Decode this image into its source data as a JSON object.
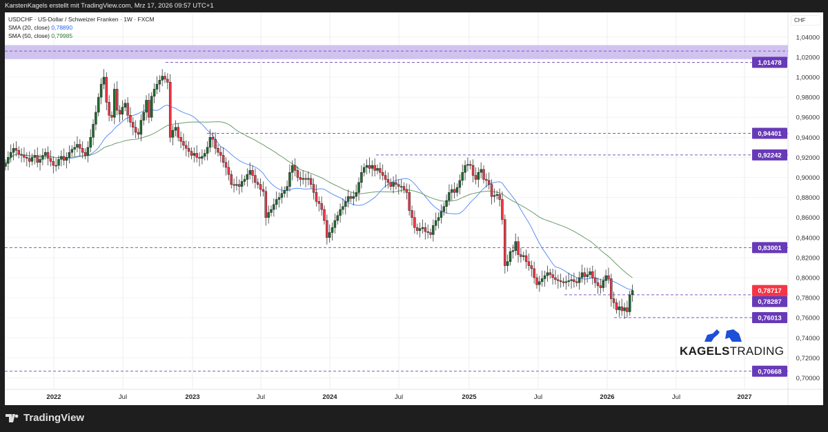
{
  "header": {
    "attribution": "KarstenKagels erstellt mit TradingView.com, Mrz 17, 2026 09:57 UTC+1"
  },
  "legend": {
    "symbol_line": "USDCHF · US-Dollar / Schweizer Franken · 1W · FXCM",
    "sma20_label": "SMA (20, close)",
    "sma20_value": "0,78890",
    "sma50_label": "SMA (50, close)",
    "sma50_value": "0,79985"
  },
  "price_axis": {
    "currency": "CHF",
    "ticks": [
      "1,04000",
      "1,02000",
      "1,00000",
      "0,98000",
      "0,96000",
      "0,94000",
      "0,92000",
      "0,90000",
      "0,88000",
      "0,86000",
      "0,84000",
      "0,82000",
      "0,80000",
      "0,78000",
      "0,76000",
      "0,74000",
      "0,72000",
      "0,70000"
    ]
  },
  "time_axis": {
    "labels": [
      "2022",
      "Jul",
      "2023",
      "Jul",
      "2024",
      "Jul",
      "2025",
      "Jul",
      "2026",
      "Jul",
      "2027"
    ]
  },
  "branding": {
    "tradingview": "TradingView",
    "kagels_bold": "KAGELS",
    "kagels_light": "TRADING"
  },
  "colors": {
    "up": "#1f6b2e",
    "down": "#f23645",
    "sma20": "#5b8ff9",
    "sma50": "#6a9c6a",
    "level": "#7e57c2",
    "badge": "#673ab7",
    "last_price": "#f23645",
    "zone": "#c9b8ec"
  },
  "chart_data": {
    "type": "candlestick",
    "symbol": "USDCHF",
    "timeframe": "1W",
    "ylim": [
      0.7,
      1.04
    ],
    "xlim": [
      "2021-09",
      "2027-03"
    ],
    "grid": true,
    "last_price": 0.78717,
    "last_price_label": "0,78717",
    "closes": [
      0.914,
      0.92,
      0.925,
      0.929,
      0.927,
      0.923,
      0.922,
      0.92,
      0.919,
      0.916,
      0.92,
      0.922,
      0.915,
      0.918,
      0.922,
      0.925,
      0.919,
      0.916,
      0.912,
      0.912,
      0.918,
      0.921,
      0.917,
      0.92,
      0.925,
      0.928,
      0.93,
      0.933,
      0.929,
      0.925,
      0.922,
      0.93,
      0.94,
      0.953,
      0.965,
      0.98,
      0.993,
      1.0,
      0.975,
      0.962,
      0.96,
      0.988,
      0.967,
      0.963,
      0.97,
      0.974,
      0.962,
      0.955,
      0.95,
      0.945,
      0.943,
      0.957,
      0.965,
      0.977,
      0.96,
      0.981,
      0.988,
      0.993,
      0.997,
      1.001,
      0.998,
      0.995,
      0.94,
      0.947,
      0.95,
      0.94,
      0.936,
      0.932,
      0.929,
      0.926,
      0.922,
      0.924,
      0.92,
      0.919,
      0.921,
      0.924,
      0.93,
      0.94,
      0.938,
      0.929,
      0.925,
      0.922,
      0.915,
      0.91,
      0.903,
      0.893,
      0.892,
      0.893,
      0.891,
      0.896,
      0.898,
      0.903,
      0.907,
      0.902,
      0.895,
      0.893,
      0.888,
      0.886,
      0.86,
      0.865,
      0.868,
      0.873,
      0.878,
      0.88,
      0.884,
      0.887,
      0.891,
      0.905,
      0.912,
      0.907,
      0.9,
      0.898,
      0.899,
      0.898,
      0.899,
      0.893,
      0.885,
      0.876,
      0.874,
      0.868,
      0.857,
      0.84,
      0.845,
      0.85,
      0.857,
      0.862,
      0.868,
      0.871,
      0.876,
      0.881,
      0.879,
      0.881,
      0.885,
      0.895,
      0.905,
      0.91,
      0.912,
      0.909,
      0.912,
      0.907,
      0.909,
      0.905,
      0.902,
      0.898,
      0.895,
      0.891,
      0.895,
      0.893,
      0.891,
      0.891,
      0.888,
      0.885,
      0.867,
      0.86,
      0.85,
      0.847,
      0.849,
      0.85,
      0.846,
      0.845,
      0.843,
      0.852,
      0.857,
      0.86,
      0.866,
      0.871,
      0.877,
      0.885,
      0.888,
      0.885,
      0.89,
      0.897,
      0.905,
      0.912,
      0.913,
      0.912,
      0.902,
      0.898,
      0.905,
      0.908,
      0.898,
      0.897,
      0.893,
      0.881,
      0.882,
      0.883,
      0.878,
      0.858,
      0.812,
      0.816,
      0.826,
      0.827,
      0.836,
      0.823,
      0.821,
      0.822,
      0.816,
      0.812,
      0.809,
      0.8,
      0.793,
      0.796,
      0.799,
      0.802,
      0.805,
      0.803,
      0.8,
      0.798,
      0.797,
      0.796,
      0.795,
      0.796,
      0.797,
      0.798,
      0.796,
      0.795,
      0.8,
      0.805,
      0.801,
      0.803,
      0.806,
      0.8,
      0.795,
      0.792,
      0.79,
      0.797,
      0.802,
      0.799,
      0.779,
      0.775,
      0.768,
      0.771,
      0.767,
      0.77,
      0.766,
      0.783,
      0.78717
    ],
    "sma_periods": [
      20,
      50
    ],
    "zone": [
      1.018,
      1.032
    ],
    "levels": [
      {
        "value": 1.01478,
        "label": "1,01478"
      },
      {
        "value": 0.94401,
        "label": "0,94401"
      },
      {
        "value": 0.92242,
        "label": "0,92242"
      },
      {
        "value": 0.83001,
        "label": "0,83001"
      },
      {
        "value": 0.78287,
        "label": "0,78287"
      },
      {
        "value": 0.76013,
        "label": "0,76013"
      },
      {
        "value": 0.70668,
        "label": "0,70668"
      }
    ]
  }
}
